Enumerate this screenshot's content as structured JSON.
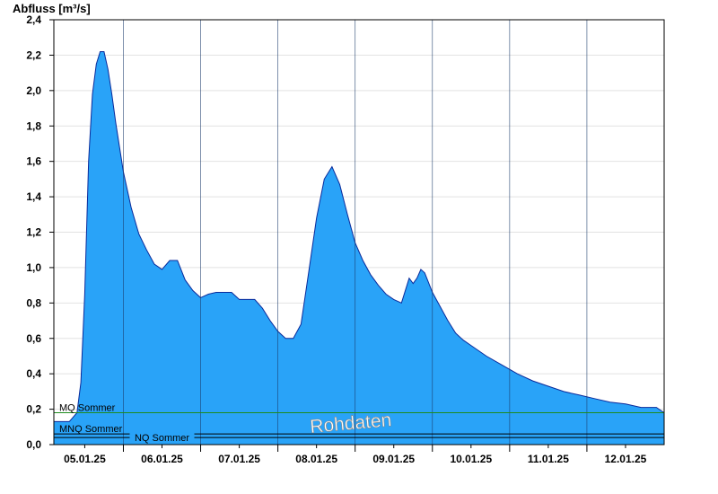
{
  "chart_data": {
    "type": "area",
    "title": "",
    "ylabel": "Abfluss [m³/s]",
    "xlabel": "",
    "ylim": [
      0,
      2.4
    ],
    "y_ticks": [
      "0,0",
      "0,2",
      "0,4",
      "0,6",
      "0,8",
      "1,0",
      "1,2",
      "1,4",
      "1,6",
      "1,8",
      "2,0",
      "2,2",
      "2,4"
    ],
    "x_ticks": [
      "05.01.25",
      "06.01.25",
      "07.01.25",
      "08.01.25",
      "09.01.25",
      "10.01.25",
      "11.01.25",
      "12.01.25"
    ],
    "grid": true,
    "series": [
      {
        "x": [
          4.6,
          4.8,
          4.9,
          4.95,
          5.0,
          5.05,
          5.1,
          5.15,
          5.2,
          5.25,
          5.3,
          5.35,
          5.4,
          5.45,
          5.5,
          5.6,
          5.7,
          5.8,
          5.9,
          6.0,
          6.1,
          6.2,
          6.3,
          6.4,
          6.5,
          6.6,
          6.7,
          6.8,
          6.9,
          7.0,
          7.1,
          7.2,
          7.3,
          7.4,
          7.5,
          7.6,
          7.7,
          7.8,
          7.9,
          8.0,
          8.1,
          8.2,
          8.3,
          8.4,
          8.5,
          8.6,
          8.7,
          8.8,
          8.9,
          9.0,
          9.1,
          9.2,
          9.25,
          9.3,
          9.35,
          9.4,
          9.5,
          9.6,
          9.7,
          9.8,
          9.9,
          10.0,
          10.2,
          10.4,
          10.6,
          10.8,
          11.0,
          11.2,
          11.4,
          11.6,
          11.8,
          12.0,
          12.2,
          12.4,
          12.5
        ],
        "y": [
          0.13,
          0.13,
          0.18,
          0.35,
          0.85,
          1.6,
          1.98,
          2.15,
          2.22,
          2.22,
          2.12,
          1.98,
          1.82,
          1.68,
          1.54,
          1.34,
          1.19,
          1.1,
          1.02,
          0.99,
          1.04,
          1.04,
          0.93,
          0.87,
          0.83,
          0.85,
          0.86,
          0.86,
          0.86,
          0.82,
          0.82,
          0.82,
          0.77,
          0.7,
          0.64,
          0.6,
          0.6,
          0.68,
          0.98,
          1.28,
          1.5,
          1.57,
          1.47,
          1.3,
          1.14,
          1.04,
          0.96,
          0.9,
          0.85,
          0.82,
          0.8,
          0.94,
          0.91,
          0.94,
          0.99,
          0.97,
          0.86,
          0.78,
          0.7,
          0.63,
          0.59,
          0.56,
          0.5,
          0.45,
          0.4,
          0.36,
          0.33,
          0.3,
          0.28,
          0.26,
          0.24,
          0.23,
          0.21,
          0.21,
          0.18
        ]
      }
    ],
    "reference_lines": [
      {
        "label": "MQ Sommer",
        "value": 0.18,
        "color": "#1e8c1e"
      },
      {
        "label": "MNQ Sommer",
        "value": 0.06,
        "color": "#000000"
      },
      {
        "label": "NQ Sommer",
        "value": 0.04,
        "color": "#000000"
      }
    ],
    "watermark": "Rohdaten",
    "fill_color": "#29a3f8",
    "line_color": "#0a2a9a"
  }
}
